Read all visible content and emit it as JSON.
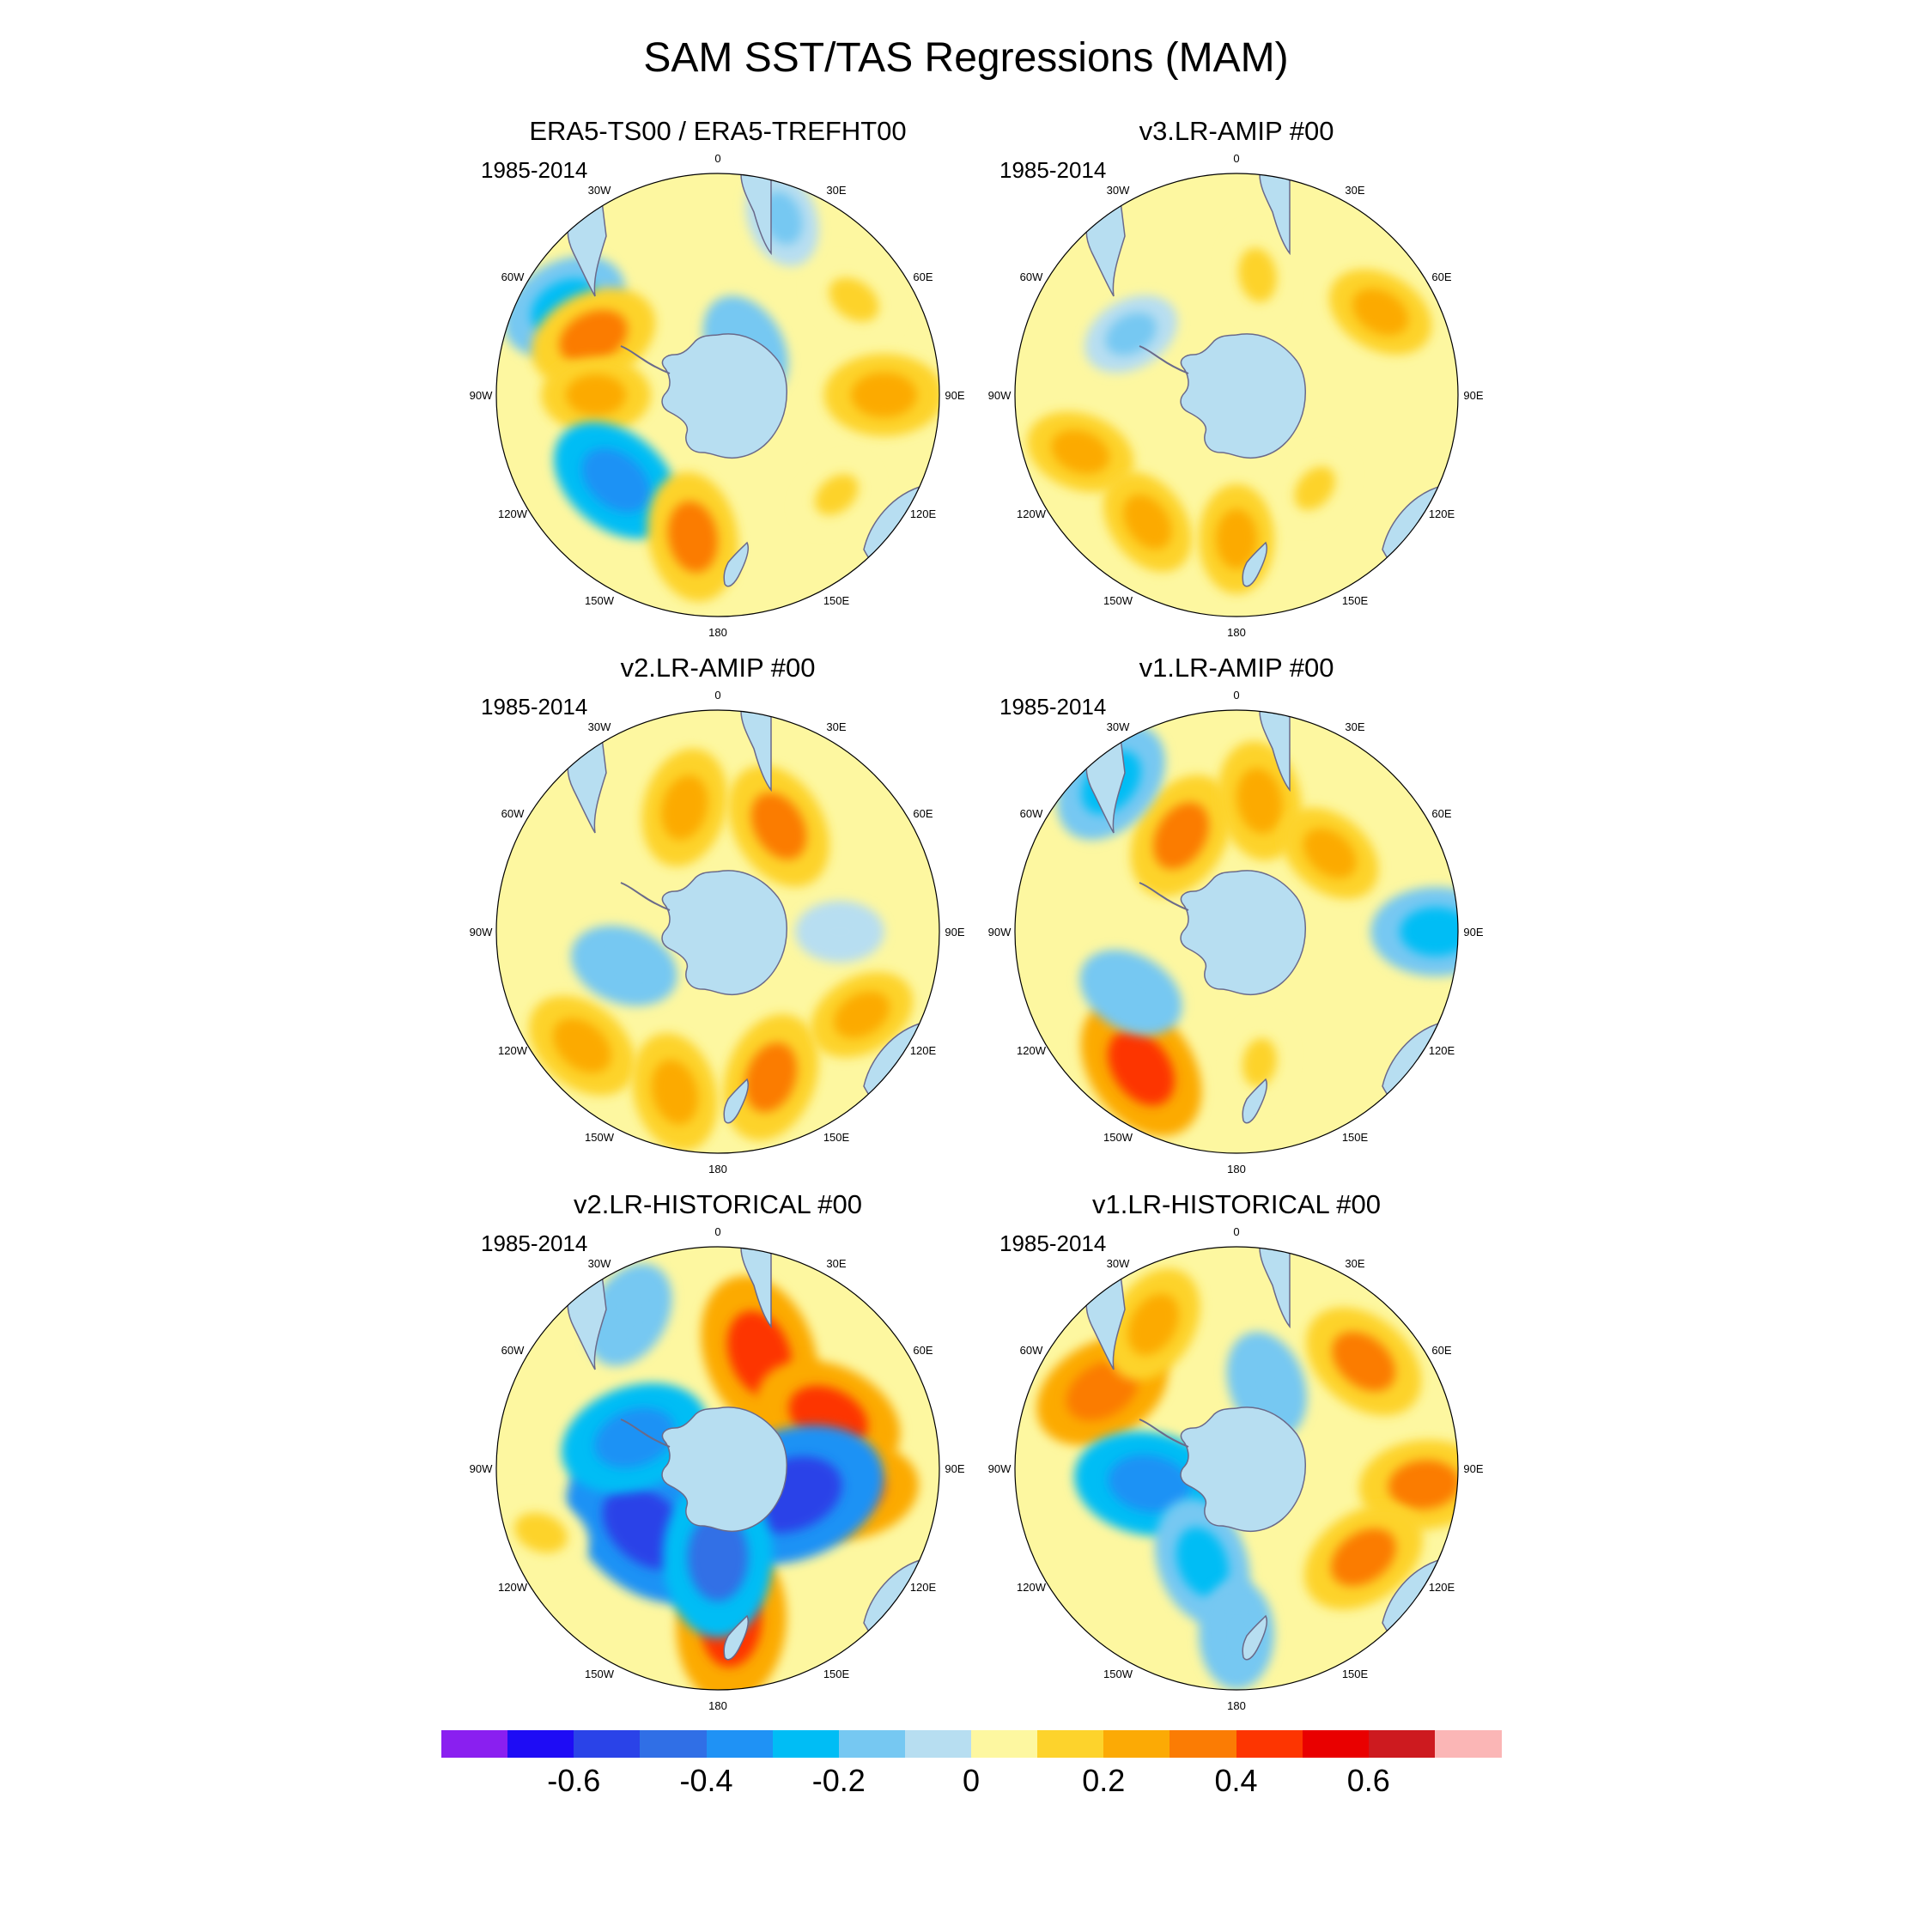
{
  "title": "SAM SST/TAS Regressions (MAM)",
  "chart_data": [
    {
      "type": "heatmap",
      "projection": "south-polar-stereographic",
      "title": "ERA5-TS00 / ERA5-TREFHT00",
      "years": "1985-2014",
      "lon_labels": [
        "0",
        "30E",
        "60E",
        "90E",
        "120E",
        "150E",
        "180",
        "150W",
        "120W",
        "90W",
        "60W",
        "30W"
      ],
      "anomalies": [
        {
          "lon": 30,
          "r": 0.25,
          "v": -0.2
        },
        {
          "lon": 300,
          "r": 0.8,
          "v": -0.3
        },
        {
          "lon": 295,
          "r": 0.62,
          "v": 0.3
        },
        {
          "lon": 270,
          "r": 0.55,
          "v": 0.2
        },
        {
          "lon": 230,
          "r": 0.6,
          "v": -0.35
        },
        {
          "lon": 190,
          "r": 0.65,
          "v": 0.3
        },
        {
          "lon": 90,
          "r": 0.75,
          "v": 0.25
        },
        {
          "lon": 55,
          "r": 0.75,
          "v": 0.15
        },
        {
          "lon": 20,
          "r": 0.85,
          "v": -0.15
        },
        {
          "lon": 130,
          "r": 0.7,
          "v": 0.1
        }
      ]
    },
    {
      "type": "heatmap",
      "projection": "south-polar-stereographic",
      "title": "v3.LR-AMIP  #00",
      "years": "1985-2014",
      "lon_labels": [
        "0",
        "30E",
        "60E",
        "90E",
        "120E",
        "150E",
        "180",
        "150W",
        "120W",
        "90W",
        "60W",
        "30W"
      ],
      "anomalies": [
        {
          "lon": 250,
          "r": 0.75,
          "v": 0.2
        },
        {
          "lon": 215,
          "r": 0.7,
          "v": 0.2
        },
        {
          "lon": 180,
          "r": 0.65,
          "v": 0.2
        },
        {
          "lon": 60,
          "r": 0.75,
          "v": 0.2
        },
        {
          "lon": 300,
          "r": 0.55,
          "v": -0.15
        },
        {
          "lon": 140,
          "r": 0.55,
          "v": 0.1
        },
        {
          "lon": 10,
          "r": 0.55,
          "v": 0.15
        }
      ]
    },
    {
      "type": "heatmap",
      "projection": "south-polar-stereographic",
      "title": "v2.LR-AMIP  #00",
      "years": "1985-2014",
      "lon_labels": [
        "0",
        "30E",
        "60E",
        "90E",
        "120E",
        "150E",
        "180",
        "150W",
        "120W",
        "90W",
        "60W",
        "30W"
      ],
      "anomalies": [
        {
          "lon": 345,
          "r": 0.58,
          "v": 0.25
        },
        {
          "lon": 30,
          "r": 0.55,
          "v": 0.3
        },
        {
          "lon": 230,
          "r": 0.8,
          "v": 0.25
        },
        {
          "lon": 195,
          "r": 0.75,
          "v": 0.25
        },
        {
          "lon": 160,
          "r": 0.7,
          "v": 0.3
        },
        {
          "lon": 120,
          "r": 0.75,
          "v": 0.2
        },
        {
          "lon": 250,
          "r": 0.45,
          "v": -0.2
        },
        {
          "lon": 90,
          "r": 0.55,
          "v": -0.1
        }
      ]
    },
    {
      "type": "heatmap",
      "projection": "south-polar-stereographic",
      "title": "v1.LR-AMIP  #00",
      "years": "1985-2014",
      "lon_labels": [
        "0",
        "30E",
        "60E",
        "90E",
        "120E",
        "150E",
        "180",
        "150W",
        "120W",
        "90W",
        "60W",
        "30W"
      ],
      "anomalies": [
        {
          "lon": 330,
          "r": 0.5,
          "v": 0.3
        },
        {
          "lon": 10,
          "r": 0.6,
          "v": 0.25
        },
        {
          "lon": 50,
          "r": 0.55,
          "v": 0.2
        },
        {
          "lon": 215,
          "r": 0.75,
          "v": 0.4
        },
        {
          "lon": 240,
          "r": 0.55,
          "v": -0.2
        },
        {
          "lon": 320,
          "r": 0.88,
          "v": -0.3
        },
        {
          "lon": 90,
          "r": 0.9,
          "v": -0.3
        },
        {
          "lon": 170,
          "r": 0.6,
          "v": 0.1
        }
      ]
    },
    {
      "type": "heatmap",
      "projection": "south-polar-stereographic",
      "title": "v2.LR-HISTORICAL  #00",
      "years": "1985-2014",
      "lon_labels": [
        "0",
        "30E",
        "60E",
        "90E",
        "120E",
        "150E",
        "180",
        "150W",
        "120W",
        "90W",
        "60W",
        "30W"
      ],
      "anomalies": [
        {
          "lon": 20,
          "r": 0.55,
          "v": 0.45
        },
        {
          "lon": 65,
          "r": 0.55,
          "v": 0.4
        },
        {
          "lon": 100,
          "r": 0.6,
          "v": 0.35
        },
        {
          "lon": 175,
          "r": 0.7,
          "v": 0.45
        },
        {
          "lon": 230,
          "r": 0.42,
          "v": -0.55
        },
        {
          "lon": 110,
          "r": 0.35,
          "v": -0.6
        },
        {
          "lon": 180,
          "r": 0.4,
          "v": -0.45
        },
        {
          "lon": 290,
          "r": 0.4,
          "v": -0.4
        },
        {
          "lon": 250,
          "r": 0.85,
          "v": 0.15
        },
        {
          "lon": 330,
          "r": 0.8,
          "v": -0.2
        }
      ]
    },
    {
      "type": "heatmap",
      "projection": "south-polar-stereographic",
      "title": "v1.LR-HISTORICAL  #00",
      "years": "1985-2014",
      "lon_labels": [
        "0",
        "30E",
        "60E",
        "90E",
        "120E",
        "150E",
        "180",
        "150W",
        "120W",
        "90W",
        "60W",
        "30W"
      ],
      "anomalies": [
        {
          "lon": 300,
          "r": 0.7,
          "v": 0.35
        },
        {
          "lon": 330,
          "r": 0.75,
          "v": 0.25
        },
        {
          "lon": 50,
          "r": 0.75,
          "v": 0.3
        },
        {
          "lon": 95,
          "r": 0.85,
          "v": 0.3
        },
        {
          "lon": 125,
          "r": 0.7,
          "v": 0.3
        },
        {
          "lon": 260,
          "r": 0.4,
          "v": -0.4
        },
        {
          "lon": 200,
          "r": 0.45,
          "v": -0.3
        },
        {
          "lon": 180,
          "r": 0.75,
          "v": -0.2
        },
        {
          "lon": 20,
          "r": 0.4,
          "v": -0.2
        }
      ]
    }
  ],
  "colorbar": {
    "colors": [
      "#8a1ff0",
      "#1e0cf5",
      "#2a43e8",
      "#306fe6",
      "#1f92f5",
      "#00bdf5",
      "#76c8f2",
      "#b7def1",
      "#fdf7a0",
      "#fdd32c",
      "#fcaa05",
      "#fb7c04",
      "#fd3501",
      "#e90000",
      "#cd1a1f",
      "#fbb6b6"
    ],
    "bounds": [
      -0.8,
      -0.7,
      -0.6,
      -0.5,
      -0.4,
      -0.3,
      -0.2,
      -0.1,
      0,
      0.1,
      0.2,
      0.3,
      0.4,
      0.5,
      0.6,
      0.7,
      0.8
    ],
    "tick_labels": [
      "-0.6",
      "-0.4",
      "-0.2",
      "0",
      "0.2",
      "0.4",
      "0.6"
    ],
    "tick_values": [
      -0.6,
      -0.4,
      -0.2,
      0,
      0.2,
      0.4,
      0.6
    ]
  }
}
